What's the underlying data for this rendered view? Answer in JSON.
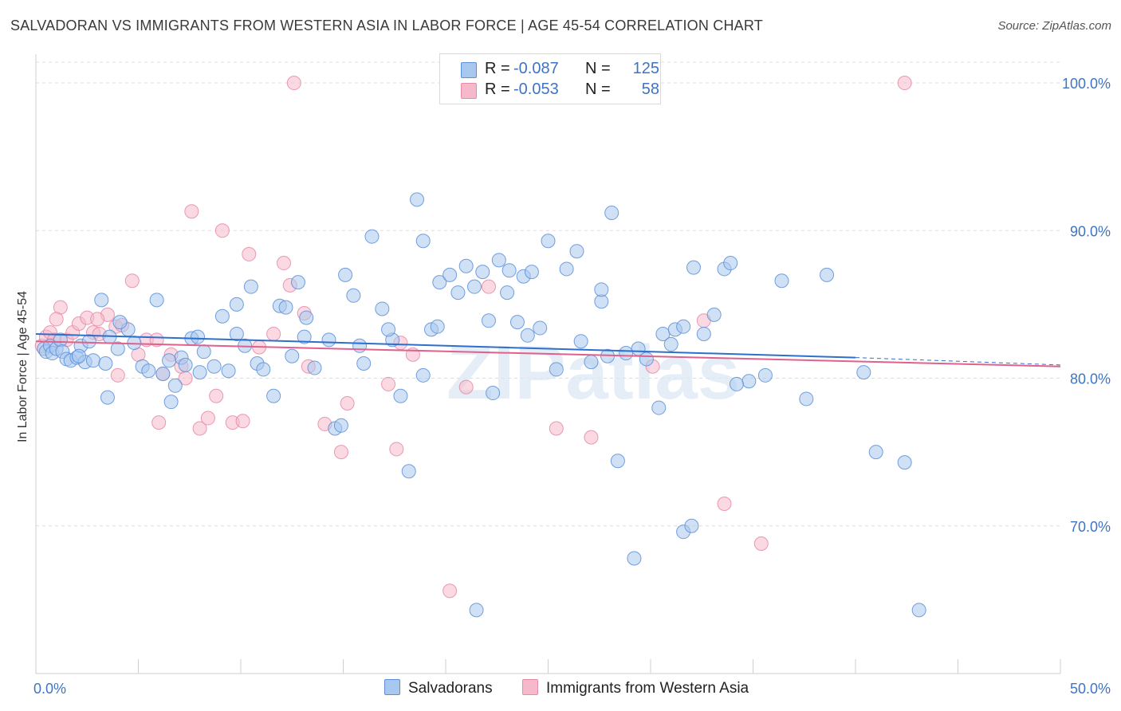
{
  "title": "SALVADORAN VS IMMIGRANTS FROM WESTERN ASIA IN LABOR FORCE | AGE 45-54 CORRELATION CHART",
  "source": "Source: ZipAtlas.com",
  "watermark": "ZIPatlas",
  "legend": {
    "rows": [
      {
        "r_label": "R =",
        "r_value": "-0.087",
        "n_label": "N =",
        "n_value": "125"
      },
      {
        "r_label": "R =",
        "r_value": "-0.053",
        "n_label": "N =",
        "n_value": "58"
      }
    ]
  },
  "colors": {
    "blue_fill": "#a9c8ef",
    "blue_stroke": "#5b8fd8",
    "blue_line": "#2f6fcc",
    "pink_fill": "#f6b9cb",
    "pink_stroke": "#e58aa7",
    "pink_line": "#e0618d",
    "tick_text": "#3f74c4",
    "grid": "#dcdcdc"
  },
  "chart_data": {
    "type": "scatter",
    "title": "SALVADORAN VS IMMIGRANTS FROM WESTERN ASIA IN LABOR FORCE | AGE 45-54 CORRELATION CHART",
    "ylabel": "In Labor Force | Age 45-54",
    "xlabel": "",
    "xlim": [
      0,
      50
    ],
    "ylim": [
      60,
      102
    ],
    "x_tick_labels": [
      "0.0%",
      "50.0%"
    ],
    "y_ticks": [
      70,
      80,
      90,
      100
    ],
    "y_tick_labels": [
      "70.0%",
      "80.0%",
      "90.0%",
      "100.0%"
    ],
    "grid": true,
    "legend_position": "bottom",
    "series": [
      {
        "name": "Salvadorans",
        "color": "#a9c8ef",
        "trend": {
          "x": [
            0,
            40
          ],
          "y": [
            83.0,
            81.4
          ],
          "dashed_to": [
            50,
            80.9
          ]
        },
        "points": [
          [
            0.4,
            82.0
          ],
          [
            0.5,
            81.8
          ],
          [
            0.7,
            82.2
          ],
          [
            0.8,
            81.7
          ],
          [
            1.0,
            82.0
          ],
          [
            1.2,
            82.6
          ],
          [
            1.3,
            81.8
          ],
          [
            1.5,
            81.3
          ],
          [
            1.7,
            81.2
          ],
          [
            2.0,
            81.4
          ],
          [
            2.2,
            82.2
          ],
          [
            2.4,
            81.1
          ],
          [
            2.6,
            82.5
          ],
          [
            2.8,
            81.2
          ],
          [
            3.2,
            85.3
          ],
          [
            3.4,
            81.0
          ],
          [
            3.6,
            82.8
          ],
          [
            4.0,
            82.0
          ],
          [
            4.5,
            83.3
          ],
          [
            4.8,
            82.4
          ],
          [
            5.2,
            80.8
          ],
          [
            5.5,
            80.5
          ],
          [
            6.2,
            80.3
          ],
          [
            6.6,
            78.4
          ],
          [
            6.8,
            79.5
          ],
          [
            7.1,
            81.4
          ],
          [
            7.6,
            82.7
          ],
          [
            7.9,
            82.8
          ],
          [
            8.2,
            81.8
          ],
          [
            8.7,
            80.8
          ],
          [
            9.1,
            84.2
          ],
          [
            9.4,
            80.5
          ],
          [
            9.8,
            85.0
          ],
          [
            10.2,
            82.2
          ],
          [
            10.5,
            86.2
          ],
          [
            10.8,
            81.0
          ],
          [
            11.1,
            80.6
          ],
          [
            11.6,
            78.8
          ],
          [
            11.9,
            84.9
          ],
          [
            12.2,
            84.8
          ],
          [
            12.8,
            86.5
          ],
          [
            13.1,
            82.8
          ],
          [
            13.6,
            80.7
          ],
          [
            14.3,
            82.6
          ],
          [
            14.6,
            76.6
          ],
          [
            15.1,
            87.0
          ],
          [
            15.5,
            85.6
          ],
          [
            15.8,
            82.2
          ],
          [
            16.4,
            89.6
          ],
          [
            16.9,
            84.7
          ],
          [
            17.4,
            82.6
          ],
          [
            17.8,
            78.8
          ],
          [
            18.2,
            73.7
          ],
          [
            18.6,
            92.1
          ],
          [
            18.9,
            89.3
          ],
          [
            19.3,
            83.3
          ],
          [
            19.7,
            86.5
          ],
          [
            20.2,
            87.0
          ],
          [
            20.6,
            85.8
          ],
          [
            21.0,
            87.6
          ],
          [
            21.4,
            86.2
          ],
          [
            21.8,
            87.2
          ],
          [
            22.3,
            79.0
          ],
          [
            22.6,
            88.0
          ],
          [
            23.1,
            87.3
          ],
          [
            23.5,
            83.8
          ],
          [
            23.8,
            86.9
          ],
          [
            24.2,
            87.2
          ],
          [
            24.6,
            83.4
          ],
          [
            25.0,
            89.3
          ],
          [
            25.4,
            80.6
          ],
          [
            25.9,
            87.4
          ],
          [
            26.4,
            88.6
          ],
          [
            27.1,
            81.1
          ],
          [
            27.6,
            85.2
          ],
          [
            27.9,
            81.5
          ],
          [
            28.4,
            74.4
          ],
          [
            28.1,
            91.2
          ],
          [
            29.4,
            82.0
          ],
          [
            29.8,
            81.3
          ],
          [
            30.6,
            83.0
          ],
          [
            31.2,
            83.3
          ],
          [
            31.6,
            83.5
          ],
          [
            32.1,
            87.5
          ],
          [
            32.6,
            83.0
          ],
          [
            33.1,
            84.3
          ],
          [
            33.6,
            87.4
          ],
          [
            33.9,
            87.8
          ],
          [
            34.8,
            79.8
          ],
          [
            35.6,
            80.2
          ],
          [
            36.4,
            86.6
          ],
          [
            37.6,
            78.6
          ],
          [
            38.6,
            87.0
          ],
          [
            40.4,
            80.4
          ],
          [
            41.0,
            75.0
          ],
          [
            42.4,
            74.3
          ],
          [
            43.1,
            64.3
          ],
          [
            29.2,
            67.8
          ],
          [
            31.6,
            69.6
          ],
          [
            30.4,
            78.0
          ],
          [
            21.5,
            64.3
          ],
          [
            32.0,
            70.0
          ],
          [
            27.6,
            86.0
          ],
          [
            17.2,
            83.3
          ],
          [
            13.2,
            84.1
          ],
          [
            23.0,
            85.8
          ],
          [
            8.0,
            80.4
          ],
          [
            9.8,
            83.0
          ],
          [
            2.1,
            81.5
          ],
          [
            3.5,
            78.7
          ],
          [
            4.1,
            83.8
          ],
          [
            5.9,
            85.3
          ],
          [
            6.5,
            81.2
          ],
          [
            7.3,
            80.9
          ],
          [
            12.5,
            81.5
          ],
          [
            14.9,
            76.8
          ],
          [
            16.0,
            81.0
          ],
          [
            18.9,
            80.2
          ],
          [
            19.6,
            83.5
          ],
          [
            24.0,
            82.9
          ],
          [
            26.6,
            82.5
          ],
          [
            28.8,
            81.7
          ],
          [
            31.0,
            82.3
          ],
          [
            34.2,
            79.6
          ],
          [
            22.1,
            83.9
          ]
        ]
      },
      {
        "name": "Immigrants from Western Asia",
        "color": "#f6b9cb",
        "trend": {
          "x": [
            0,
            50
          ],
          "y": [
            82.5,
            80.8
          ]
        },
        "points": [
          [
            0.3,
            82.2
          ],
          [
            0.5,
            82.8
          ],
          [
            0.7,
            83.1
          ],
          [
            0.9,
            82.6
          ],
          [
            1.2,
            84.8
          ],
          [
            1.5,
            82.6
          ],
          [
            1.8,
            83.1
          ],
          [
            2.1,
            83.7
          ],
          [
            2.5,
            84.1
          ],
          [
            2.8,
            83.1
          ],
          [
            3.1,
            83.0
          ],
          [
            3.5,
            84.3
          ],
          [
            3.9,
            83.5
          ],
          [
            4.2,
            83.6
          ],
          [
            4.7,
            86.6
          ],
          [
            5.0,
            81.6
          ],
          [
            5.4,
            82.6
          ],
          [
            5.9,
            82.6
          ],
          [
            6.2,
            80.3
          ],
          [
            6.6,
            81.6
          ],
          [
            7.1,
            80.8
          ],
          [
            7.6,
            91.3
          ],
          [
            8.0,
            76.6
          ],
          [
            8.4,
            77.3
          ],
          [
            9.1,
            90.0
          ],
          [
            9.6,
            77.0
          ],
          [
            10.1,
            77.1
          ],
          [
            10.4,
            88.4
          ],
          [
            10.9,
            82.1
          ],
          [
            11.6,
            83.0
          ],
          [
            12.1,
            87.8
          ],
          [
            12.4,
            86.3
          ],
          [
            13.1,
            84.4
          ],
          [
            14.1,
            76.9
          ],
          [
            14.9,
            75.0
          ],
          [
            15.2,
            78.3
          ],
          [
            17.2,
            79.6
          ],
          [
            17.6,
            75.2
          ],
          [
            17.8,
            82.4
          ],
          [
            18.4,
            81.6
          ],
          [
            20.2,
            65.6
          ],
          [
            21.0,
            79.4
          ],
          [
            22.1,
            86.2
          ],
          [
            25.4,
            76.6
          ],
          [
            27.1,
            76.0
          ],
          [
            30.1,
            80.8
          ],
          [
            32.6,
            83.9
          ],
          [
            33.6,
            71.5
          ],
          [
            35.4,
            68.8
          ],
          [
            12.6,
            100.0
          ],
          [
            42.4,
            100.0
          ],
          [
            7.3,
            80.0
          ],
          [
            6.0,
            77.0
          ],
          [
            3.0,
            84.0
          ],
          [
            8.8,
            78.8
          ],
          [
            4.0,
            80.2
          ],
          [
            1.0,
            84.0
          ],
          [
            13.3,
            80.8
          ]
        ]
      }
    ]
  }
}
